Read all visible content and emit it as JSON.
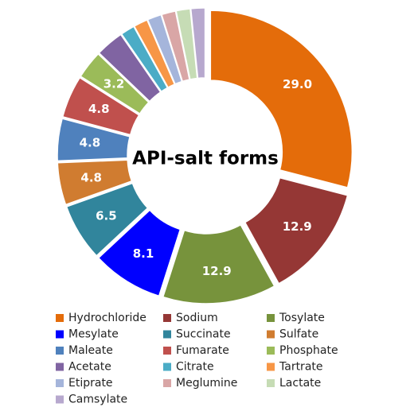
{
  "chart_data": {
    "type": "donut",
    "title": "API-salt forms",
    "categories": [
      "Hydrochloride",
      "Sodium",
      "Tosylate",
      "Mesylate",
      "Succinate",
      "Sulfate",
      "Maleate",
      "Fumarate",
      "Phosphate",
      "Acetate",
      "Citrate",
      "Tartrate",
      "Etiprate",
      "Meglumine",
      "Lactate",
      "Camsylate"
    ],
    "values": [
      29.0,
      12.9,
      12.9,
      8.1,
      6.5,
      4.8,
      4.8,
      4.8,
      3.2,
      3.2,
      1.6,
      1.6,
      1.6,
      1.6,
      1.6,
      1.6
    ],
    "value_labels": [
      "29.0",
      "12.9",
      "12.9",
      "8.1",
      "6.5",
      "4.8",
      "4.8",
      "4.8",
      "3.2",
      null,
      null,
      null,
      null,
      null,
      null,
      null
    ],
    "colors": [
      "#E46C0A",
      "#953735",
      "#77933C",
      "#0000FF",
      "#31859C",
      "#D07C30",
      "#4F81BD",
      "#C0504D",
      "#9BBB59",
      "#8064A2",
      "#4BACC6",
      "#F79646",
      "#A5B5DB",
      "#D9A6A6",
      "#C6DCB5",
      "#B7A8CE"
    ]
  }
}
